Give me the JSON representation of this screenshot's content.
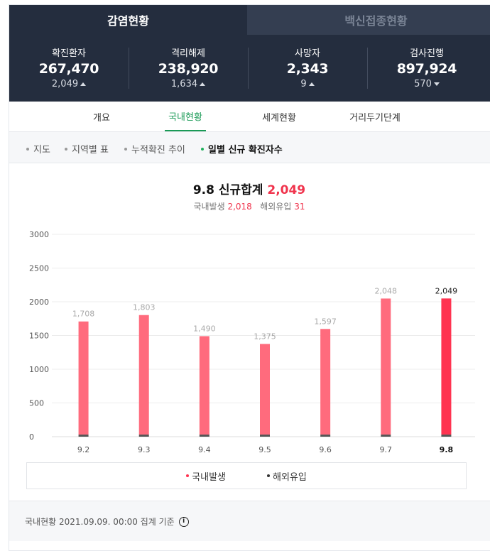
{
  "top_tabs": [
    {
      "label": "감염현황",
      "active": true
    },
    {
      "label": "백신접종현황",
      "active": false
    }
  ],
  "stats": [
    {
      "label": "확진환자",
      "value": "267,470",
      "change": "2,049",
      "direction": "up"
    },
    {
      "label": "격리해제",
      "value": "238,920",
      "change": "1,634",
      "direction": "up"
    },
    {
      "label": "사망자",
      "value": "2,343",
      "change": "9",
      "direction": "up"
    },
    {
      "label": "검사진행",
      "value": "897,924",
      "change": "570",
      "direction": "down"
    }
  ],
  "nav": [
    {
      "label": "개요",
      "active": false
    },
    {
      "label": "국내현황",
      "active": true
    },
    {
      "label": "세계현황",
      "active": false
    },
    {
      "label": "거리두기단계",
      "active": false
    }
  ],
  "sub_nav": [
    {
      "label": "지도",
      "active": false
    },
    {
      "label": "지역별 표",
      "active": false
    },
    {
      "label": "누적확진 추이",
      "active": false
    },
    {
      "label": "일별 신규 확진자수",
      "active": true
    }
  ],
  "chart_header": {
    "title_prefix": "9.8 신규합계",
    "title_total": "2,049",
    "domestic_label": "국내발생",
    "domestic_value": "2,018",
    "overseas_label": "해외유입",
    "overseas_value": "31"
  },
  "chart_data": {
    "type": "bar",
    "stacked": true,
    "categories": [
      "9.2",
      "9.3",
      "9.4",
      "9.5",
      "9.6",
      "9.7",
      "9.8"
    ],
    "totals": [
      1708,
      1803,
      1490,
      1375,
      1597,
      2048,
      2049
    ],
    "total_labels": [
      "1,708",
      "1,803",
      "1,490",
      "1,375",
      "1,597",
      "2,048",
      "2,049"
    ],
    "series": [
      {
        "name": "국내발생",
        "values": [
          1677,
          1772,
          1459,
          1344,
          1566,
          2017,
          2018
        ]
      },
      {
        "name": "해외유입",
        "values": [
          31,
          31,
          31,
          31,
          31,
          31,
          31
        ]
      }
    ],
    "yticks": [
      0,
      500,
      1000,
      1500,
      2000,
      2500,
      3000
    ],
    "ylim": [
      0,
      3000
    ],
    "highlight_index": 6,
    "colors": {
      "domestic": "#ff6b7d",
      "domestic_highlight": "#ff3350",
      "overseas": "#555555"
    }
  },
  "legend": [
    {
      "label": "국내발생",
      "color": "#ff3350"
    },
    {
      "label": "해외유입",
      "color": "#333333"
    }
  ],
  "footer": {
    "text": "국내현황 2021.09.09. 00:00 집계 기준",
    "icon": "info-icon"
  }
}
